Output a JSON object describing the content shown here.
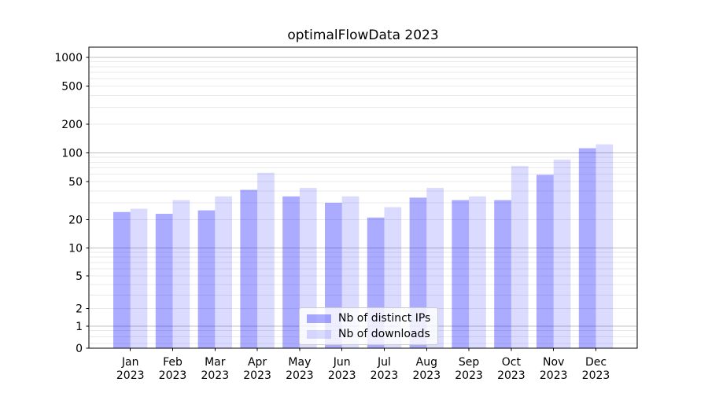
{
  "chart_data": {
    "type": "bar",
    "title": "optimalFlowData 2023",
    "categories": [
      {
        "label": "Jan",
        "sublabel": "2023"
      },
      {
        "label": "Feb",
        "sublabel": "2023"
      },
      {
        "label": "Mar",
        "sublabel": "2023"
      },
      {
        "label": "Apr",
        "sublabel": "2023"
      },
      {
        "label": "May",
        "sublabel": "2023"
      },
      {
        "label": "Jun",
        "sublabel": "2023"
      },
      {
        "label": "Jul",
        "sublabel": "2023"
      },
      {
        "label": "Aug",
        "sublabel": "2023"
      },
      {
        "label": "Sep",
        "sublabel": "2023"
      },
      {
        "label": "Oct",
        "sublabel": "2023"
      },
      {
        "label": "Nov",
        "sublabel": "2023"
      },
      {
        "label": "Dec",
        "sublabel": "2023"
      }
    ],
    "series": [
      {
        "name": "Nb of distinct IPs",
        "values": [
          24,
          23,
          25,
          41,
          35,
          30,
          21,
          34,
          32,
          32,
          59,
          112
        ],
        "color": "#0000ff",
        "opacity": 0.33,
        "flat_color": "#ababff"
      },
      {
        "name": "Nb of downloads",
        "values": [
          26,
          32,
          35,
          62,
          43,
          35,
          27,
          43,
          35,
          73,
          85,
          123
        ],
        "color": "#0000ff",
        "opacity": 0.14,
        "flat_color": "#dcdcff"
      }
    ],
    "xlabel": "",
    "ylabel": "",
    "yticks": [
      0,
      1,
      2,
      5,
      10,
      20,
      50,
      100,
      200,
      500,
      1000
    ],
    "ylim": [
      0,
      1282
    ],
    "yscale": {
      "type": "asinh",
      "linear_width": 1.8
    },
    "grid": {
      "on": true,
      "major": [
        1,
        10,
        100,
        1000
      ],
      "minor": [
        0.2,
        0.5,
        0.8,
        2,
        3,
        4,
        5,
        6,
        7,
        8,
        9,
        20,
        30,
        40,
        50,
        60,
        70,
        80,
        90,
        200,
        300,
        400,
        500,
        600,
        700,
        800,
        900
      ],
      "major_color": "#c0c0c0",
      "minor_color": "#e9e9e9"
    },
    "legend_position": "lower center",
    "axis_color": "#000000",
    "text_color": "#000000",
    "background_color": "#ffffff"
  }
}
